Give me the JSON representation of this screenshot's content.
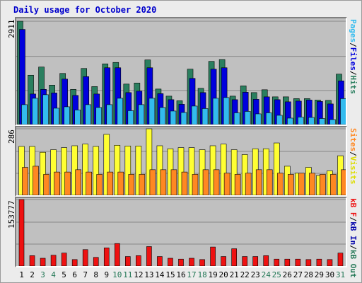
{
  "title": "Daily usage for October 2020",
  "colors": {
    "hits": "#2a7f5f",
    "files": "#0000dd",
    "pages": "#33bbee",
    "visits": "#ffff33",
    "sites": "#ff8822",
    "kb_f": "#ee1111",
    "kb_in": "#0000aa",
    "kb_out": "#227755",
    "weekend_label": "#227755",
    "weekday_label": "#000000",
    "panel_bg": "#c0c0c0",
    "gridline": "#888888"
  },
  "chart_data": [
    {
      "type": "bar",
      "name": "hits-files-pages",
      "ymax_label": "2911",
      "ylim": [
        0,
        2911
      ],
      "grid": true,
      "legend_placement": "right-vertical",
      "legend": [
        "Pages",
        "Files",
        "Hits"
      ],
      "categories": [
        "1",
        "2",
        "3",
        "4",
        "5",
        "6",
        "7",
        "8",
        "9",
        "10",
        "11",
        "12",
        "13",
        "14",
        "15",
        "16",
        "17",
        "18",
        "19",
        "20",
        "21",
        "22",
        "23",
        "24",
        "25",
        "26",
        "27",
        "28",
        "29",
        "30",
        "31"
      ],
      "series": [
        {
          "name": "Hits",
          "values": [
            2911,
            1390,
            1620,
            1110,
            1440,
            990,
            1580,
            1070,
            1710,
            1750,
            1140,
            1170,
            1820,
            1000,
            800,
            670,
            1560,
            1020,
            1780,
            1830,
            800,
            1090,
            900,
            980,
            780,
            780,
            730,
            730,
            690,
            680,
            1420
          ]
        },
        {
          "name": "Files",
          "values": [
            2680,
            860,
            990,
            890,
            1280,
            820,
            1350,
            860,
            1600,
            1600,
            900,
            940,
            1600,
            870,
            700,
            570,
            1300,
            900,
            1560,
            1600,
            700,
            910,
            710,
            780,
            700,
            640,
            660,
            690,
            650,
            580,
            1230
          ]
        },
        {
          "name": "Pages",
          "values": [
            560,
            740,
            840,
            460,
            500,
            410,
            560,
            480,
            560,
            740,
            390,
            560,
            740,
            480,
            380,
            340,
            520,
            450,
            740,
            760,
            330,
            370,
            300,
            330,
            260,
            180,
            210,
            200,
            170,
            140,
            730
          ]
        }
      ]
    },
    {
      "type": "bar",
      "name": "visits-sites",
      "ymax_label": "286",
      "ylim": [
        0,
        286
      ],
      "grid": true,
      "legend_placement": "right-vertical",
      "legend": [
        "Sites",
        "Visits"
      ],
      "categories": [
        "1",
        "2",
        "3",
        "4",
        "5",
        "6",
        "7",
        "8",
        "9",
        "10",
        "11",
        "12",
        "13",
        "14",
        "15",
        "16",
        "17",
        "18",
        "19",
        "20",
        "21",
        "22",
        "23",
        "24",
        "25",
        "26",
        "27",
        "28",
        "29",
        "30",
        "31"
      ],
      "series": [
        {
          "name": "Visits",
          "values": [
            210,
            210,
            185,
            196,
            205,
            213,
            220,
            210,
            262,
            215,
            212,
            212,
            286,
            213,
            200,
            205,
            205,
            196,
            213,
            220,
            196,
            175,
            200,
            200,
            225,
            125,
            95,
            120,
            85,
            105,
            170
          ]
        },
        {
          "name": "Sites",
          "values": [
            120,
            125,
            90,
            100,
            100,
            110,
            100,
            90,
            100,
            100,
            90,
            90,
            110,
            110,
            110,
            100,
            90,
            110,
            110,
            95,
            90,
            95,
            110,
            110,
            95,
            90,
            95,
            95,
            90,
            90,
            110
          ]
        }
      ]
    },
    {
      "type": "bar",
      "name": "kbytes",
      "ymax_label": "153777",
      "ylim": [
        0,
        153777
      ],
      "grid": true,
      "legend_placement": "right-vertical",
      "legend": [
        "kB F",
        "kB In",
        "kB Out"
      ],
      "categories": [
        "1",
        "2",
        "3",
        "4",
        "5",
        "6",
        "7",
        "8",
        "9",
        "10",
        "11",
        "12",
        "13",
        "14",
        "15",
        "16",
        "17",
        "18",
        "19",
        "20",
        "21",
        "22",
        "23",
        "24",
        "25",
        "26",
        "27",
        "28",
        "29",
        "30",
        "31"
      ],
      "series": [
        {
          "name": "kB F",
          "values": [
            153777,
            24000,
            18000,
            25000,
            30000,
            15000,
            38000,
            20000,
            42000,
            52000,
            22000,
            24000,
            45000,
            22000,
            18000,
            16000,
            18000,
            15000,
            44000,
            22000,
            40000,
            22000,
            22000,
            24000,
            16000,
            16000,
            16000,
            15000,
            16000,
            15000,
            30000
          ]
        }
      ]
    }
  ]
}
